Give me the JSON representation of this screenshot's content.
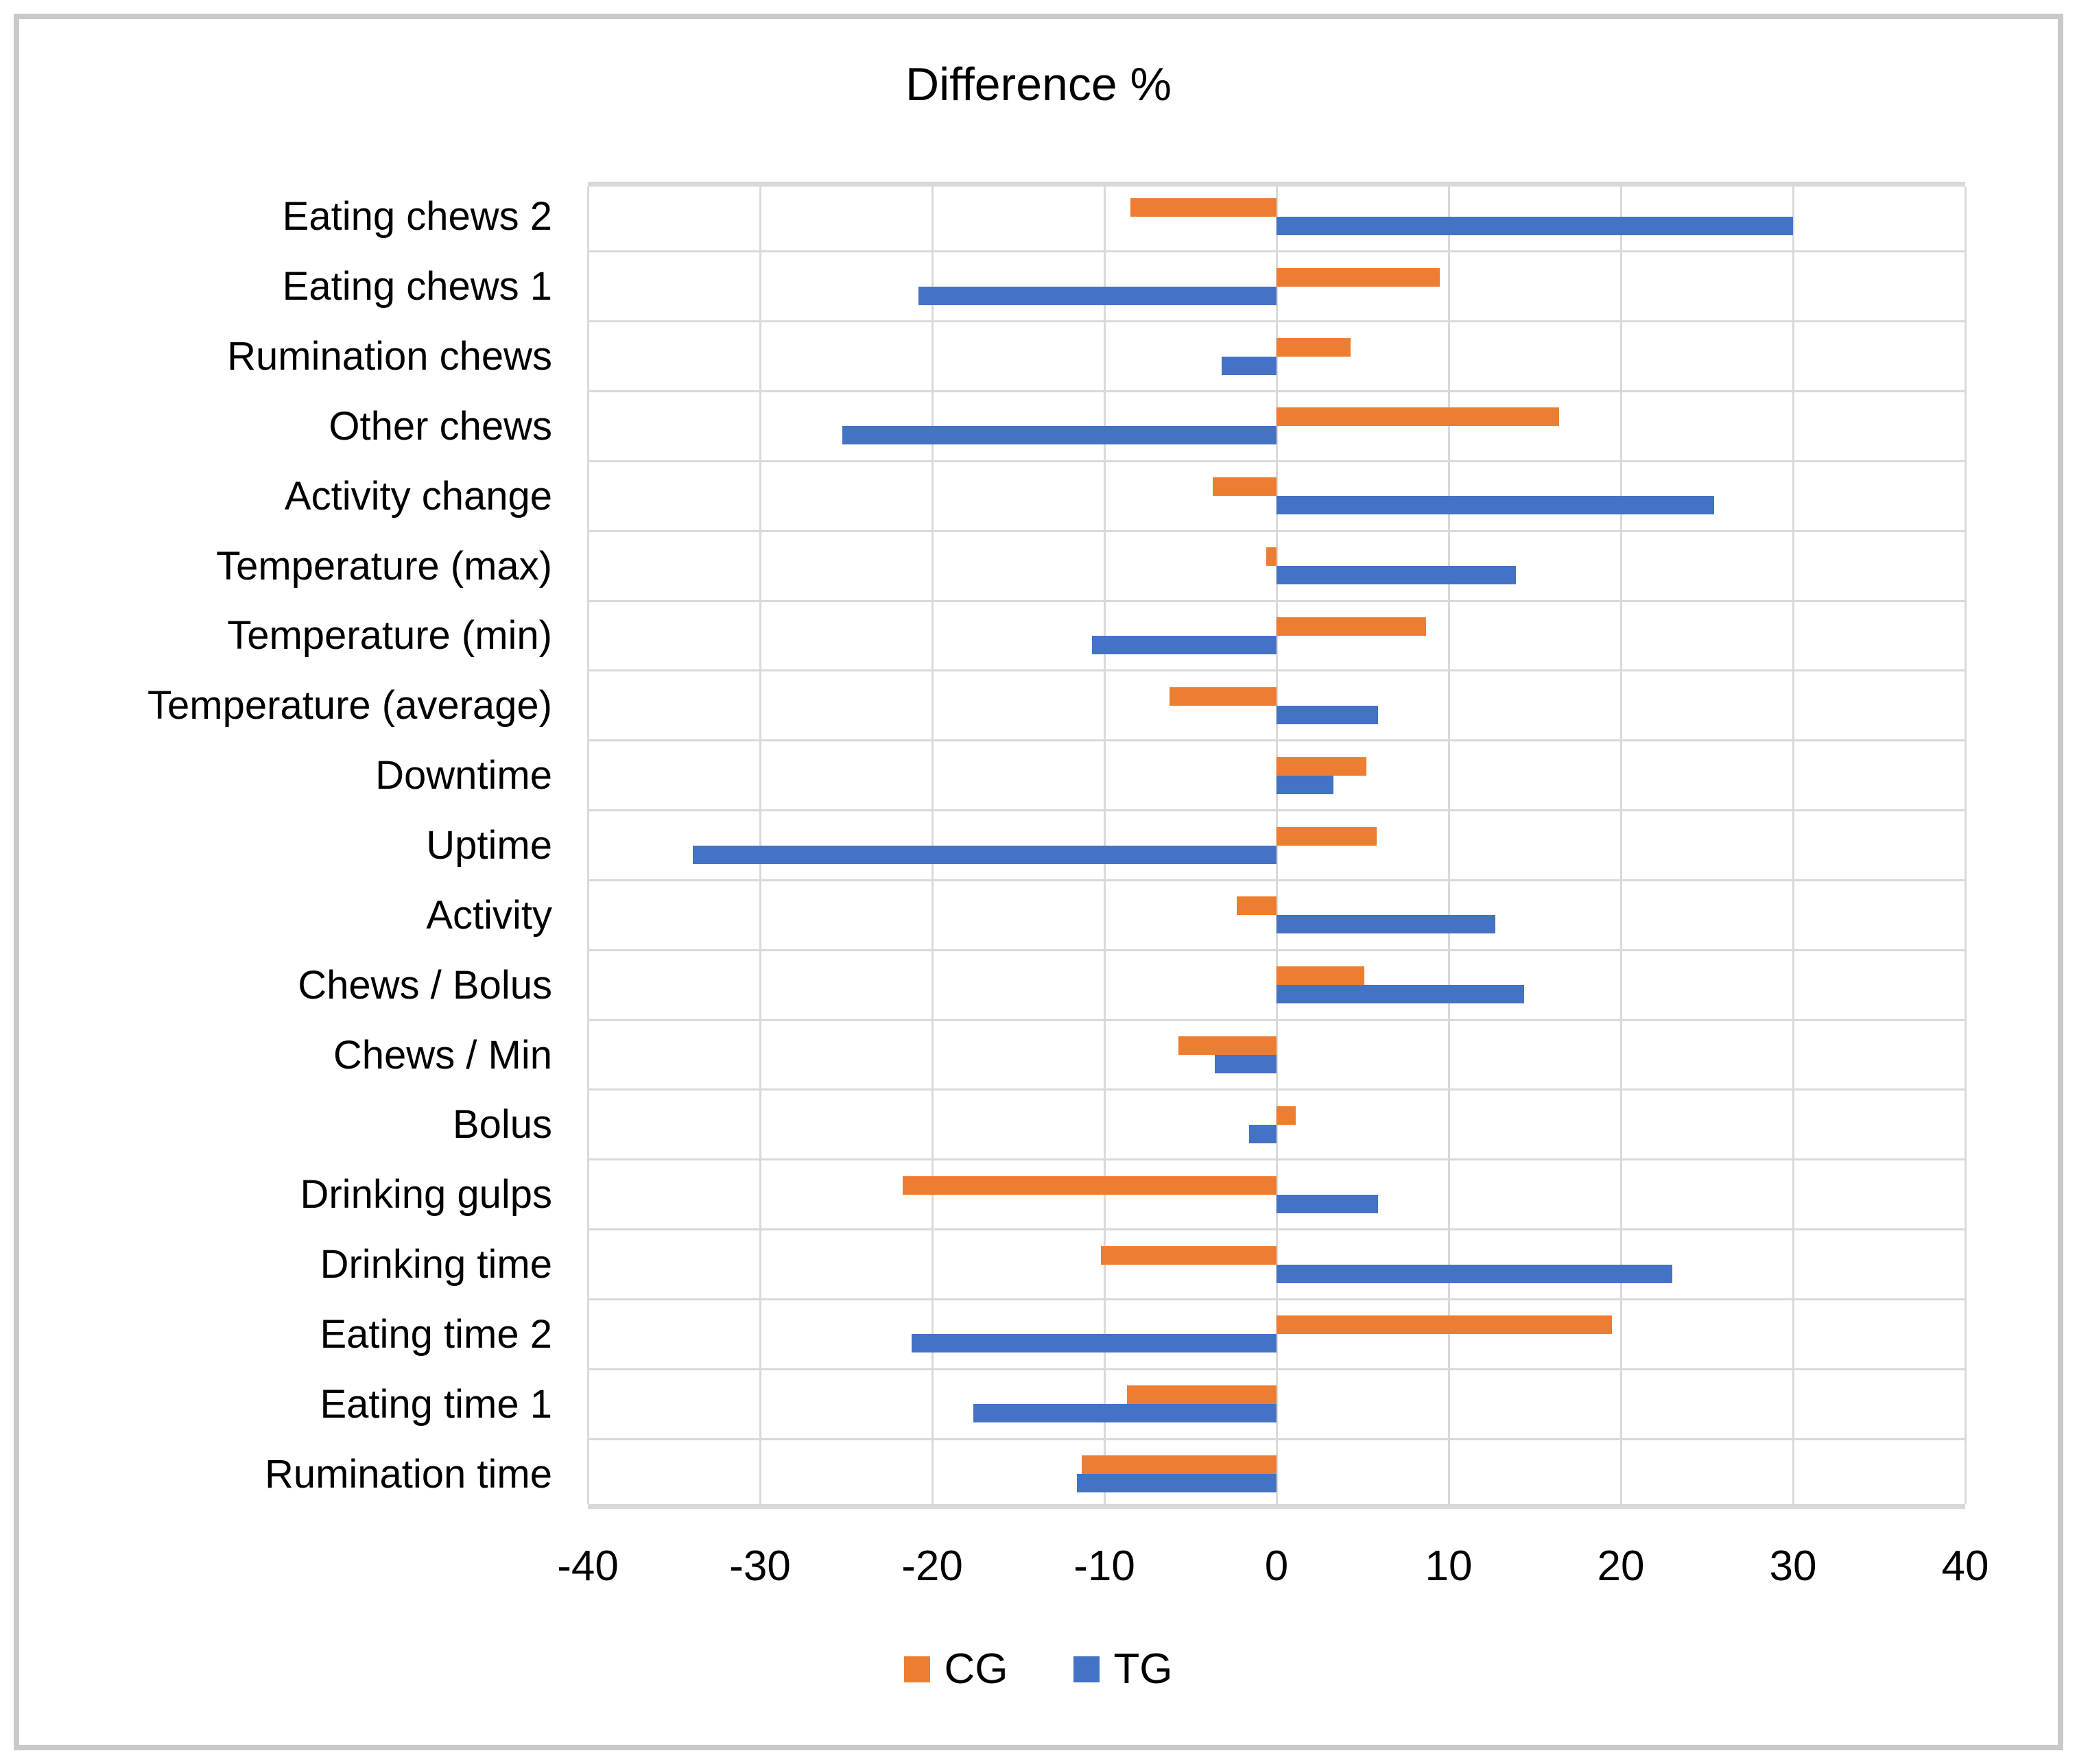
{
  "chart_data": {
    "type": "bar",
    "orientation": "horizontal",
    "title": "Difference %",
    "xlabel": "",
    "ylabel": "",
    "xlim": [
      -40,
      40
    ],
    "x_ticks": [
      -40,
      -30,
      -20,
      -10,
      0,
      10,
      20,
      30,
      40
    ],
    "grid": true,
    "legend_position": "bottom",
    "categories": [
      "Eating chews 2",
      "Eating chews 1",
      "Rumination chews",
      "Other chews",
      "Activity change",
      "Temperature (max)",
      "Temperature (min)",
      "Temperature (average)",
      "Downtime",
      "Uptime",
      "Activity",
      "Chews / Bolus",
      "Chews / Min",
      "Bolus",
      "Drinking gulps",
      "Drinking time",
      "Eating time 2",
      "Eating time 1",
      "Rumination time"
    ],
    "series": [
      {
        "name": "CG",
        "color": "#ED7D31",
        "values": [
          -8.5,
          9.5,
          4.3,
          16.4,
          -3.7,
          -0.6,
          8.7,
          -6.2,
          5.2,
          5.8,
          -2.3,
          5.1,
          -5.7,
          1.1,
          -21.7,
          -10.2,
          19.5,
          -8.7,
          -11.3
        ]
      },
      {
        "name": "TG",
        "color": "#4472C4",
        "values": [
          30.0,
          -20.8,
          -3.2,
          -25.2,
          25.4,
          13.9,
          -10.7,
          5.9,
          3.3,
          -33.9,
          12.7,
          14.4,
          -3.6,
          -1.6,
          5.9,
          23.0,
          -21.2,
          -17.6,
          -11.6
        ]
      }
    ],
    "gridline_color": "#D9D9D9",
    "text_color": "#000000"
  }
}
